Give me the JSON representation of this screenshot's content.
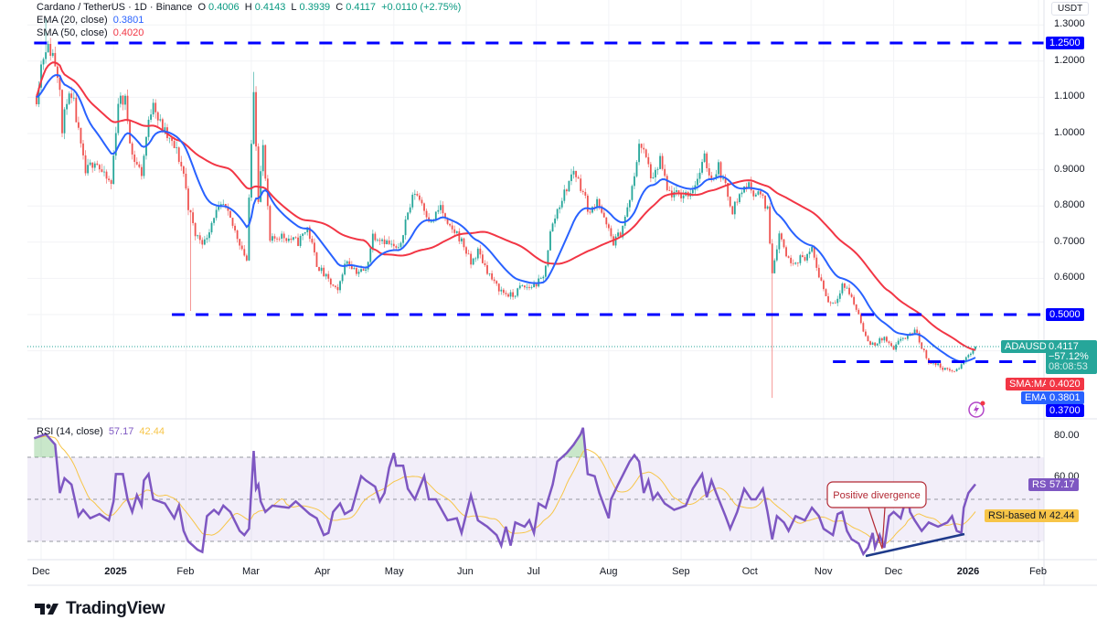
{
  "header": {
    "symbol": "Cardano / TetherUS · 1D · Binance",
    "o_label": "O",
    "open": "0.4006",
    "h_label": "H",
    "high": "0.4143",
    "l_label": "L",
    "low": "0.3939",
    "c_label": "C",
    "close": "0.4117",
    "change": "+0.0110 (+2.75%)"
  },
  "indicators": {
    "ema": {
      "label": "EMA (20, close)",
      "value": "0.3801",
      "tag": "EMA",
      "color": "#2962ff"
    },
    "sma": {
      "label": "SMA (50, close)",
      "value": "0.4020",
      "tag": "SMA:MA",
      "color": "#f23645"
    }
  },
  "price_axis": {
    "currency": "USDT",
    "ticks": [
      "1.3000",
      "1.2000",
      "1.1000",
      "1.0000",
      "0.9000",
      "0.8000",
      "0.7000",
      "0.6000"
    ]
  },
  "last_price": {
    "symbol_tag": "ADAUSDT",
    "value": "0.4117",
    "change_pct": "−57.12%",
    "countdown": "08:08:53",
    "color": "#26a69a"
  },
  "levels": [
    {
      "value": "1.2500",
      "from": "2024-11-28"
    },
    {
      "value": "0.5000",
      "from": "2025-01-26"
    },
    {
      "value": "0.3700",
      "from": "2025-11-05"
    }
  ],
  "level_color": "#0000ff",
  "rsi": {
    "label": "RSI (14, close)",
    "value": "57.17",
    "tag": "RSI",
    "color": "#7e57c2",
    "ma_label": "RSI-based MA",
    "ma_value": "42.44",
    "ma_color": "#f7c548",
    "ticks": [
      "80.00",
      "60.00"
    ],
    "bands": [
      70,
      50,
      30
    ]
  },
  "annotation": {
    "text": "Positive divergence"
  },
  "time_axis": {
    "labels": [
      {
        "text": "Dec",
        "date": "2024-12-01",
        "bold": false
      },
      {
        "text": "2025",
        "date": "2025-01-01",
        "bold": true
      },
      {
        "text": "Feb",
        "date": "2025-02-01",
        "bold": false
      },
      {
        "text": "Mar",
        "date": "2025-03-01",
        "bold": false
      },
      {
        "text": "Apr",
        "date": "2025-04-01",
        "bold": false
      },
      {
        "text": "May",
        "date": "2025-05-01",
        "bold": false
      },
      {
        "text": "Jun",
        "date": "2025-06-01",
        "bold": false
      },
      {
        "text": "Jul",
        "date": "2025-07-01",
        "bold": false
      },
      {
        "text": "Aug",
        "date": "2025-08-01",
        "bold": false
      },
      {
        "text": "Sep",
        "date": "2025-09-01",
        "bold": false
      },
      {
        "text": "Oct",
        "date": "2025-10-01",
        "bold": false
      },
      {
        "text": "Nov",
        "date": "2025-11-01",
        "bold": false
      },
      {
        "text": "Dec",
        "date": "2025-12-01",
        "bold": false
      },
      {
        "text": "2026",
        "date": "2026-01-01",
        "bold": true
      },
      {
        "text": "Feb",
        "date": "2026-02-01",
        "bold": false
      }
    ]
  },
  "branding": {
    "name": "TradingView"
  },
  "chart_data": {
    "type": "candlestick",
    "up_color": "#26a69a",
    "down_color": "#ef5350",
    "ylim": [
      0.25,
      1.33
    ],
    "rsi_ylim": [
      15,
      90
    ],
    "price_closes": [
      [
        "2024-11-29",
        1.1
      ],
      [
        "2024-12-01",
        1.19
      ],
      [
        "2024-12-03",
        1.24
      ],
      [
        "2024-12-06",
        1.22
      ],
      [
        "2024-12-09",
        1.14
      ],
      [
        "2024-12-10",
        1.0
      ],
      [
        "2024-12-12",
        1.1
      ],
      [
        "2024-12-15",
        1.08
      ],
      [
        "2024-12-18",
        0.96
      ],
      [
        "2024-12-20",
        0.89
      ],
      [
        "2024-12-24",
        0.93
      ],
      [
        "2024-12-28",
        0.88
      ],
      [
        "2024-12-31",
        0.86
      ],
      [
        "2025-01-03",
        1.09
      ],
      [
        "2025-01-06",
        1.09
      ],
      [
        "2025-01-09",
        0.94
      ],
      [
        "2025-01-13",
        0.89
      ],
      [
        "2025-01-15",
        0.99
      ],
      [
        "2025-01-18",
        1.1
      ],
      [
        "2025-01-20",
        1.04
      ],
      [
        "2025-01-24",
        0.99
      ],
      [
        "2025-01-28",
        0.95
      ],
      [
        "2025-01-31",
        0.89
      ],
      [
        "2025-02-02",
        0.8
      ],
      [
        "2025-02-05",
        0.72
      ],
      [
        "2025-02-09",
        0.7
      ],
      [
        "2025-02-13",
        0.775
      ],
      [
        "2025-02-17",
        0.8
      ],
      [
        "2025-02-20",
        0.76
      ],
      [
        "2025-02-24",
        0.7
      ],
      [
        "2025-02-27",
        0.65
      ],
      [
        "2025-03-02",
        1.13
      ],
      [
        "2025-03-04",
        0.825
      ],
      [
        "2025-03-06",
        0.96
      ],
      [
        "2025-03-09",
        0.7
      ],
      [
        "2025-03-13",
        0.72
      ],
      [
        "2025-03-17",
        0.71
      ],
      [
        "2025-03-21",
        0.7
      ],
      [
        "2025-03-25",
        0.74
      ],
      [
        "2025-03-29",
        0.64
      ],
      [
        "2025-04-01",
        0.61
      ],
      [
        "2025-04-04",
        0.585
      ],
      [
        "2025-04-07",
        0.56
      ],
      [
        "2025-04-09",
        0.62
      ],
      [
        "2025-04-11",
        0.65
      ],
      [
        "2025-04-15",
        0.62
      ],
      [
        "2025-04-19",
        0.62
      ],
      [
        "2025-04-22",
        0.72
      ],
      [
        "2025-04-26",
        0.71
      ],
      [
        "2025-04-30",
        0.69
      ],
      [
        "2025-05-03",
        0.675
      ],
      [
        "2025-05-06",
        0.76
      ],
      [
        "2025-05-10",
        0.84
      ],
      [
        "2025-05-13",
        0.81
      ],
      [
        "2025-05-17",
        0.75
      ],
      [
        "2025-05-21",
        0.8
      ],
      [
        "2025-05-24",
        0.74
      ],
      [
        "2025-05-28",
        0.725
      ],
      [
        "2025-05-31",
        0.69
      ],
      [
        "2025-06-03",
        0.64
      ],
      [
        "2025-06-06",
        0.675
      ],
      [
        "2025-06-09",
        0.635
      ],
      [
        "2025-06-13",
        0.585
      ],
      [
        "2025-06-17",
        0.56
      ],
      [
        "2025-06-21",
        0.55
      ],
      [
        "2025-06-24",
        0.575
      ],
      [
        "2025-06-28",
        0.575
      ],
      [
        "2025-07-01",
        0.585
      ],
      [
        "2025-07-04",
        0.6
      ],
      [
        "2025-07-07",
        0.725
      ],
      [
        "2025-07-10",
        0.79
      ],
      [
        "2025-07-14",
        0.85
      ],
      [
        "2025-07-17",
        0.9
      ],
      [
        "2025-07-21",
        0.84
      ],
      [
        "2025-07-24",
        0.775
      ],
      [
        "2025-07-27",
        0.825
      ],
      [
        "2025-07-30",
        0.76
      ],
      [
        "2025-08-03",
        0.7
      ],
      [
        "2025-08-06",
        0.725
      ],
      [
        "2025-08-09",
        0.79
      ],
      [
        "2025-08-12",
        0.875
      ],
      [
        "2025-08-14",
        0.98
      ],
      [
        "2025-08-17",
        0.93
      ],
      [
        "2025-08-20",
        0.865
      ],
      [
        "2025-08-23",
        0.93
      ],
      [
        "2025-08-26",
        0.84
      ],
      [
        "2025-08-29",
        0.83
      ],
      [
        "2025-09-02",
        0.83
      ],
      [
        "2025-09-05",
        0.84
      ],
      [
        "2025-09-08",
        0.875
      ],
      [
        "2025-09-11",
        0.93
      ],
      [
        "2025-09-14",
        0.875
      ],
      [
        "2025-09-17",
        0.91
      ],
      [
        "2025-09-20",
        0.85
      ],
      [
        "2025-09-23",
        0.79
      ],
      [
        "2025-09-26",
        0.83
      ],
      [
        "2025-09-29",
        0.86
      ],
      [
        "2025-10-02",
        0.84
      ],
      [
        "2025-10-05",
        0.83
      ],
      [
        "2025-10-08",
        0.79
      ],
      [
        "2025-10-10",
        0.62
      ],
      [
        "2025-10-13",
        0.725
      ],
      [
        "2025-10-17",
        0.65
      ],
      [
        "2025-10-20",
        0.65
      ],
      [
        "2025-10-24",
        0.66
      ],
      [
        "2025-10-27",
        0.675
      ],
      [
        "2025-10-30",
        0.61
      ],
      [
        "2025-11-03",
        0.535
      ],
      [
        "2025-11-06",
        0.535
      ],
      [
        "2025-11-09",
        0.585
      ],
      [
        "2025-11-12",
        0.56
      ],
      [
        "2025-11-16",
        0.5
      ],
      [
        "2025-11-20",
        0.42
      ],
      [
        "2025-11-23",
        0.42
      ],
      [
        "2025-11-27",
        0.435
      ],
      [
        "2025-12-01",
        0.4
      ],
      [
        "2025-12-04",
        0.435
      ],
      [
        "2025-12-07",
        0.435
      ],
      [
        "2025-12-10",
        0.46
      ],
      [
        "2025-12-13",
        0.41
      ],
      [
        "2025-12-16",
        0.37
      ],
      [
        "2025-12-20",
        0.36
      ],
      [
        "2025-12-24",
        0.345
      ],
      [
        "2025-12-28",
        0.345
      ],
      [
        "2025-12-31",
        0.37
      ],
      [
        "2026-01-02",
        0.39
      ],
      [
        "2026-01-05",
        0.4117
      ]
    ],
    "extreme_wicks": [
      {
        "date": "2024-12-03",
        "high": 1.32
      },
      {
        "date": "2025-02-03",
        "low": 0.51
      },
      {
        "date": "2025-03-02",
        "high": 1.17
      },
      {
        "date": "2025-10-10",
        "low": 0.27
      }
    ],
    "rsi_values": [
      [
        "2024-11-28",
        79
      ],
      [
        "2024-12-03",
        81
      ],
      [
        "2024-12-07",
        76
      ],
      [
        "2024-12-09",
        53
      ],
      [
        "2024-12-11",
        60
      ],
      [
        "2024-12-14",
        57
      ],
      [
        "2024-12-17",
        42
      ],
      [
        "2024-12-19",
        45
      ],
      [
        "2024-12-22",
        41
      ],
      [
        "2024-12-26",
        43
      ],
      [
        "2024-12-30",
        40
      ],
      [
        "2025-01-01",
        49
      ],
      [
        "2025-01-02",
        62
      ],
      [
        "2025-01-05",
        62
      ],
      [
        "2025-01-07",
        50
      ],
      [
        "2025-01-09",
        44
      ],
      [
        "2025-01-11",
        52
      ],
      [
        "2025-01-13",
        47
      ],
      [
        "2025-01-14",
        59
      ],
      [
        "2025-01-16",
        62
      ],
      [
        "2025-01-18",
        50
      ],
      [
        "2025-01-23",
        48
      ],
      [
        "2025-01-27",
        41
      ],
      [
        "2025-01-29",
        47
      ],
      [
        "2025-01-31",
        35
      ],
      [
        "2025-02-02",
        30
      ],
      [
        "2025-02-06",
        26
      ],
      [
        "2025-02-08",
        25
      ],
      [
        "2025-02-10",
        42
      ],
      [
        "2025-02-13",
        45
      ],
      [
        "2025-02-15",
        43
      ],
      [
        "2025-02-17",
        47
      ],
      [
        "2025-02-20",
        44
      ],
      [
        "2025-02-24",
        35
      ],
      [
        "2025-02-26",
        33
      ],
      [
        "2025-02-28",
        36
      ],
      [
        "2025-03-02",
        73
      ],
      [
        "2025-03-03",
        55
      ],
      [
        "2025-03-04",
        57
      ],
      [
        "2025-03-05",
        49
      ],
      [
        "2025-03-07",
        44
      ],
      [
        "2025-03-10",
        47
      ],
      [
        "2025-03-17",
        46
      ],
      [
        "2025-03-20",
        49
      ],
      [
        "2025-03-26",
        43
      ],
      [
        "2025-03-29",
        41
      ],
      [
        "2025-04-01",
        33
      ],
      [
        "2025-04-03",
        34
      ],
      [
        "2025-04-05",
        44
      ],
      [
        "2025-04-08",
        48
      ],
      [
        "2025-04-10",
        43
      ],
      [
        "2025-04-13",
        45
      ],
      [
        "2025-04-17",
        61
      ],
      [
        "2025-04-19",
        59
      ],
      [
        "2025-04-23",
        56
      ],
      [
        "2025-04-25",
        49
      ],
      [
        "2025-04-27",
        53
      ],
      [
        "2025-04-29",
        65
      ],
      [
        "2025-05-01",
        72
      ],
      [
        "2025-05-02",
        66
      ],
      [
        "2025-05-05",
        66
      ],
      [
        "2025-05-07",
        55
      ],
      [
        "2025-05-10",
        50
      ],
      [
        "2025-05-14",
        61
      ],
      [
        "2025-05-16",
        50
      ],
      [
        "2025-05-19",
        50
      ],
      [
        "2025-05-24",
        40
      ],
      [
        "2025-05-28",
        41
      ],
      [
        "2025-05-30",
        34
      ],
      [
        "2025-06-01",
        43
      ],
      [
        "2025-06-03",
        52
      ],
      [
        "2025-06-06",
        40
      ],
      [
        "2025-06-10",
        37
      ],
      [
        "2025-06-14",
        33
      ],
      [
        "2025-06-16",
        28
      ],
      [
        "2025-06-18",
        37
      ],
      [
        "2025-06-20",
        28
      ],
      [
        "2025-06-22",
        39
      ],
      [
        "2025-06-26",
        37
      ],
      [
        "2025-06-28",
        40
      ],
      [
        "2025-06-30",
        34
      ],
      [
        "2025-07-02",
        48
      ],
      [
        "2025-07-05",
        46
      ],
      [
        "2025-07-08",
        57
      ],
      [
        "2025-07-10",
        68
      ],
      [
        "2025-07-14",
        72
      ],
      [
        "2025-07-17",
        76
      ],
      [
        "2025-07-20",
        81
      ],
      [
        "2025-07-21",
        84
      ],
      [
        "2025-07-23",
        62
      ],
      [
        "2025-07-26",
        61
      ],
      [
        "2025-07-28",
        53
      ],
      [
        "2025-08-01",
        41
      ],
      [
        "2025-08-02",
        50
      ],
      [
        "2025-08-05",
        57
      ],
      [
        "2025-08-10",
        68
      ],
      [
        "2025-08-12",
        71
      ],
      [
        "2025-08-14",
        68
      ],
      [
        "2025-08-16",
        53
      ],
      [
        "2025-08-18",
        59
      ],
      [
        "2025-08-20",
        50
      ],
      [
        "2025-08-22",
        53
      ],
      [
        "2025-08-25",
        48
      ],
      [
        "2025-08-29",
        45
      ],
      [
        "2025-09-03",
        47
      ],
      [
        "2025-09-06",
        55
      ],
      [
        "2025-09-10",
        62
      ],
      [
        "2025-09-12",
        51
      ],
      [
        "2025-09-14",
        59
      ],
      [
        "2025-09-16",
        53
      ],
      [
        "2025-09-20",
        42
      ],
      [
        "2025-09-22",
        36
      ],
      [
        "2025-09-25",
        44
      ],
      [
        "2025-09-28",
        55
      ],
      [
        "2025-10-01",
        50
      ],
      [
        "2025-10-03",
        50
      ],
      [
        "2025-10-06",
        55
      ],
      [
        "2025-10-08",
        44
      ],
      [
        "2025-10-10",
        31
      ],
      [
        "2025-10-12",
        42
      ],
      [
        "2025-10-15",
        39
      ],
      [
        "2025-10-17",
        35
      ],
      [
        "2025-10-20",
        42
      ],
      [
        "2025-10-24",
        40
      ],
      [
        "2025-10-27",
        46
      ],
      [
        "2025-10-30",
        42
      ],
      [
        "2025-11-01",
        36
      ],
      [
        "2025-11-05",
        33
      ],
      [
        "2025-11-07",
        43
      ],
      [
        "2025-11-09",
        44
      ],
      [
        "2025-11-11",
        35
      ],
      [
        "2025-11-13",
        31
      ],
      [
        "2025-11-16",
        29
      ],
      [
        "2025-11-18",
        24
      ],
      [
        "2025-11-20",
        27
      ],
      [
        "2025-11-22",
        34
      ],
      [
        "2025-11-23",
        27
      ],
      [
        "2025-11-25",
        33
      ],
      [
        "2025-11-27",
        27
      ],
      [
        "2025-11-29",
        42
      ],
      [
        "2025-12-01",
        44
      ],
      [
        "2025-12-04",
        41
      ],
      [
        "2025-12-07",
        53
      ],
      [
        "2025-12-08",
        44
      ],
      [
        "2025-12-10",
        40
      ],
      [
        "2025-12-13",
        35
      ],
      [
        "2025-12-16",
        39
      ],
      [
        "2025-12-20",
        37
      ],
      [
        "2025-12-24",
        39
      ],
      [
        "2025-12-26",
        42
      ],
      [
        "2025-12-28",
        35
      ],
      [
        "2025-12-30",
        34
      ],
      [
        "2025-12-31",
        46
      ],
      [
        "2026-01-02",
        53
      ],
      [
        "2026-01-05",
        57.17
      ]
    ]
  }
}
